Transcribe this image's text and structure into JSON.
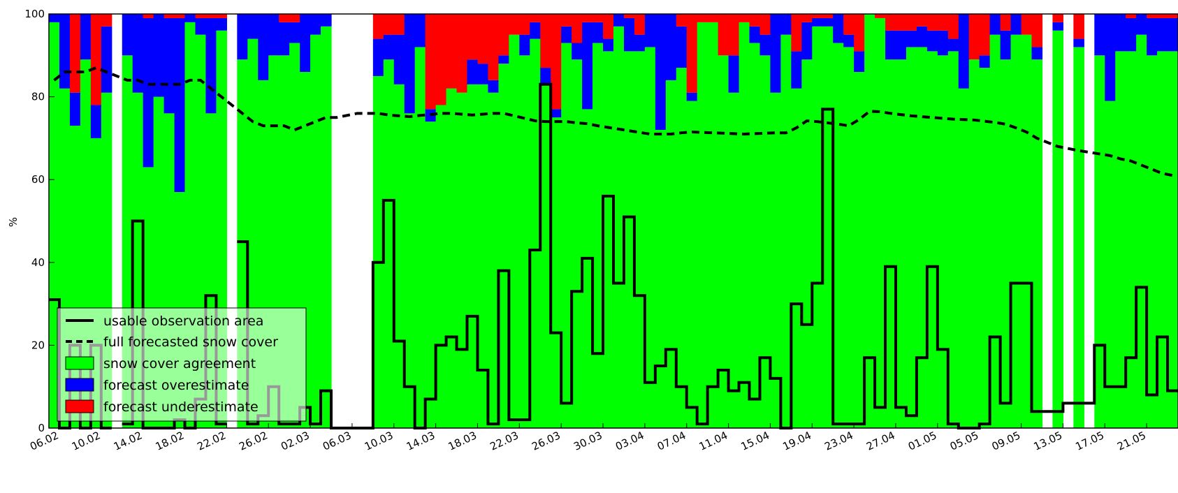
{
  "chart_data": {
    "type": "bar",
    "title": "",
    "xlabel": "",
    "ylabel": "%",
    "ylim": [
      0,
      100
    ],
    "yticks": [
      "0",
      "20",
      "40",
      "60",
      "80",
      "100"
    ],
    "xtick_labels": [
      "06.02",
      "10.02",
      "14.02",
      "18.02",
      "22.02",
      "26.02",
      "02.03",
      "06.03",
      "10.03",
      "14.03",
      "18.03",
      "22.03",
      "26.03",
      "30.03",
      "03.04",
      "07.04",
      "11.04",
      "15.04",
      "19.04",
      "23.04",
      "27.04",
      "01.05",
      "05.05",
      "09.05",
      "13.05",
      "17.05",
      "21.05"
    ],
    "grid": false,
    "legend_position": "lower-left",
    "colors": {
      "agreement": "#00ff00",
      "overestimate": "#0000ff",
      "underestimate": "#ff0000",
      "lines": "#000000"
    },
    "series": [
      {
        "name": "snow cover agreement",
        "kind": "stacked-bar",
        "values": [
          98,
          82,
          73,
          89,
          70,
          81,
          null,
          90,
          81,
          63,
          80,
          76,
          57,
          98,
          95,
          76,
          96,
          null,
          89,
          94,
          84,
          90,
          90,
          93,
          86,
          95,
          97,
          null,
          null,
          null,
          null,
          85,
          89,
          83,
          76,
          92,
          74,
          78,
          82,
          81,
          83,
          83,
          81,
          88,
          95,
          90,
          94,
          83,
          75,
          93,
          89,
          77,
          93,
          91,
          97,
          91,
          91,
          92,
          72,
          84,
          87,
          79,
          98,
          98,
          90,
          81,
          98,
          93,
          90,
          81,
          95,
          82,
          89,
          97,
          97,
          93,
          92,
          86,
          100,
          99,
          89,
          89,
          92,
          92,
          91,
          90,
          91,
          82,
          89,
          87,
          95,
          89,
          95,
          95,
          89,
          null,
          96,
          null,
          92,
          null,
          90,
          79,
          91,
          91,
          95,
          90,
          91,
          91
        ]
      },
      {
        "name": "forecast overestimate",
        "kind": "stacked-bar",
        "values": [
          2,
          18,
          8,
          11,
          8,
          16,
          null,
          10,
          19,
          36,
          20,
          23,
          42,
          2,
          4,
          23,
          3,
          null,
          11,
          6,
          16,
          10,
          8,
          5,
          14,
          5,
          3,
          null,
          null,
          null,
          null,
          9,
          6,
          12,
          24,
          8,
          3,
          0,
          0,
          0,
          6,
          5,
          3,
          2,
          0,
          5,
          4,
          4,
          2,
          4,
          4,
          21,
          5,
          3,
          3,
          8,
          4,
          8,
          28,
          16,
          10,
          2,
          0,
          0,
          0,
          9,
          0,
          4,
          5,
          19,
          5,
          9,
          9,
          2,
          2,
          7,
          3,
          5,
          0,
          0,
          7,
          7,
          4,
          5,
          5,
          6,
          3,
          18,
          0,
          3,
          5,
          7,
          5,
          0,
          3,
          null,
          2,
          null,
          2,
          null,
          10,
          21,
          9,
          8,
          5,
          9,
          8,
          8
        ]
      },
      {
        "name": "forecast underestimate",
        "kind": "stacked-bar",
        "values": [
          0,
          0,
          19,
          0,
          22,
          3,
          null,
          0,
          0,
          1,
          0,
          1,
          1,
          0,
          1,
          1,
          1,
          null,
          0,
          0,
          0,
          0,
          2,
          2,
          0,
          0,
          0,
          null,
          null,
          null,
          null,
          6,
          5,
          5,
          0,
          0,
          23,
          22,
          18,
          19,
          11,
          12,
          16,
          10,
          5,
          5,
          2,
          13,
          23,
          3,
          7,
          2,
          2,
          6,
          0,
          1,
          5,
          0,
          0,
          0,
          3,
          19,
          2,
          2,
          10,
          10,
          2,
          3,
          5,
          0,
          0,
          9,
          2,
          1,
          1,
          0,
          5,
          9,
          0,
          1,
          4,
          4,
          4,
          3,
          4,
          4,
          6,
          0,
          11,
          10,
          0,
          4,
          0,
          5,
          8,
          null,
          2,
          null,
          6,
          null,
          0,
          0,
          0,
          1,
          0,
          1,
          1,
          1
        ]
      },
      {
        "name": "usable observation area",
        "kind": "step-line",
        "values": [
          31,
          0,
          20,
          0,
          20,
          0,
          null,
          1,
          50,
          0,
          0,
          0,
          2,
          0,
          7,
          32,
          1,
          null,
          45,
          1,
          3,
          10,
          1,
          1,
          5,
          1,
          9,
          0,
          0,
          0,
          0,
          40,
          55,
          21,
          10,
          0,
          7,
          20,
          22,
          19,
          27,
          14,
          1,
          38,
          2,
          2,
          43,
          83,
          23,
          6,
          33,
          41,
          18,
          56,
          35,
          51,
          32,
          11,
          15,
          19,
          10,
          5,
          1,
          10,
          14,
          9,
          11,
          7,
          17,
          12,
          0,
          30,
          25,
          35,
          77,
          1,
          1,
          1,
          17,
          5,
          39,
          5,
          3,
          17,
          39,
          19,
          1,
          0,
          0,
          1,
          22,
          6,
          35,
          35,
          4,
          4,
          4,
          6,
          6,
          6,
          20,
          10,
          10,
          17,
          34,
          8,
          22,
          9
        ]
      },
      {
        "name": "full forecasted snow cover",
        "kind": "dashed-line",
        "values": [
          84,
          86,
          86,
          86,
          87,
          86,
          85,
          84,
          84,
          83,
          83,
          83,
          83,
          84,
          84,
          82,
          80,
          78,
          76,
          74,
          73,
          73,
          73,
          72,
          73,
          74,
          75,
          75,
          75.5,
          76,
          76,
          76,
          75.6,
          75.4,
          75.2,
          75.5,
          75.7,
          76,
          76,
          75.8,
          75.6,
          75.8,
          76,
          76,
          75.4,
          74.8,
          74.2,
          74,
          74,
          74,
          73.7,
          73.5,
          73,
          72.6,
          72.2,
          71.8,
          71.4,
          71,
          71,
          71,
          71.3,
          71.5,
          71.4,
          71.3,
          71.2,
          71.1,
          71,
          71.1,
          71.2,
          71.3,
          71.3,
          72.5,
          74.2,
          74,
          73.7,
          73.4,
          73,
          74.5,
          76.5,
          76.4,
          76,
          75.7,
          75.4,
          75.2,
          75,
          74.8,
          74.6,
          74.5,
          74.4,
          74.1,
          73.8,
          73.4,
          72.5,
          71.5,
          70,
          69,
          68,
          67.5,
          67,
          66.6,
          66.2,
          65.8,
          65,
          64.5,
          63.5,
          62.5,
          61.5,
          61
        ]
      }
    ]
  }
}
